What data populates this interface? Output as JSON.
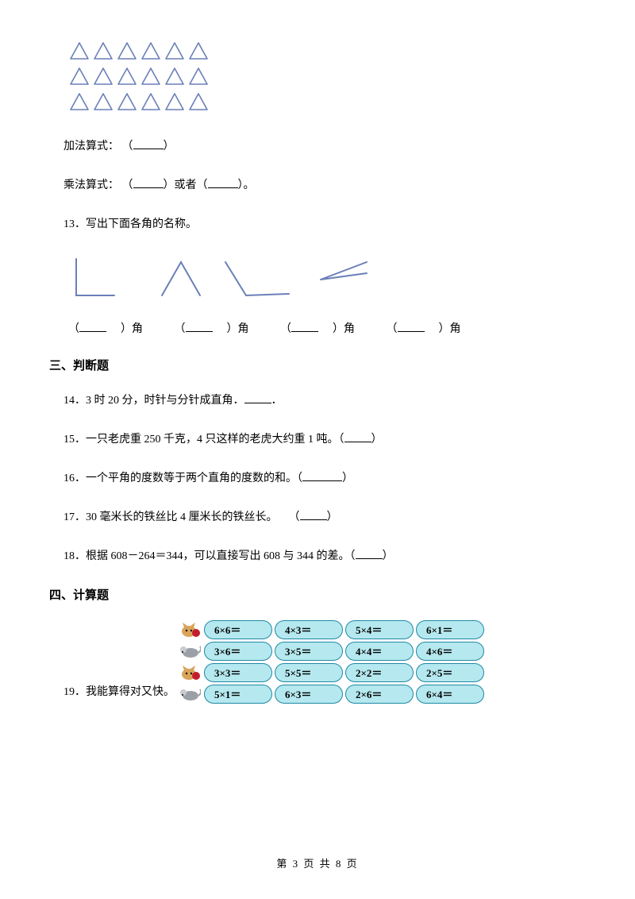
{
  "triangles": {
    "rows": 3,
    "cols": 6,
    "stroke_color": "#6b7fb8",
    "stroke_width": 1.6
  },
  "q12": {
    "addition_label": "加法算式：",
    "multiplication_label": "乘法算式：",
    "or_text": "或者",
    "period": "。"
  },
  "q13": {
    "number": "13",
    "text": "．写出下面各角的名称。",
    "angle_label_suffix": "角",
    "angle_stroke": "#6b7fb8",
    "angle_stroke_width": 2
  },
  "section3": "三、判断题",
  "q14": {
    "number": "14",
    "text": "．3 时 20 分，时针与分针成直角．"
  },
  "q15": {
    "number": "15",
    "text": "．一只老虎重 250 千克，4 只这样的老虎大约重 1 吨。"
  },
  "q16": {
    "number": "16",
    "text": "．一个平角的度数等于两个直角的度数的和。"
  },
  "q17": {
    "number": "17",
    "text": "．30 毫米长的铁丝比 4 厘米长的铁丝长。"
  },
  "q18": {
    "number": "18",
    "text": "．根据 608－264＝344，可以直接写出 608 与 344 的差。"
  },
  "section4": "四、计算题",
  "q19": {
    "number": "19",
    "label": "．我能算得对又快。",
    "pill_bg": "#b5e8ef",
    "pill_border": "#2089a5",
    "rows": [
      {
        "animal": "cat",
        "cells": [
          "6×6＝",
          "4×3＝",
          "5×4＝",
          "6×1＝"
        ]
      },
      {
        "animal": "mouse",
        "cells": [
          "3×6＝",
          "3×5＝",
          "4×4＝",
          "4×6＝"
        ]
      },
      {
        "animal": "cat",
        "cells": [
          "3×3＝",
          "5×5＝",
          "2×2＝",
          "2×5＝"
        ]
      },
      {
        "animal": "mouse",
        "cells": [
          "5×1＝",
          "6×3＝",
          "2×6＝",
          "6×4＝"
        ]
      }
    ]
  },
  "footer": "第 3 页 共 8 页"
}
